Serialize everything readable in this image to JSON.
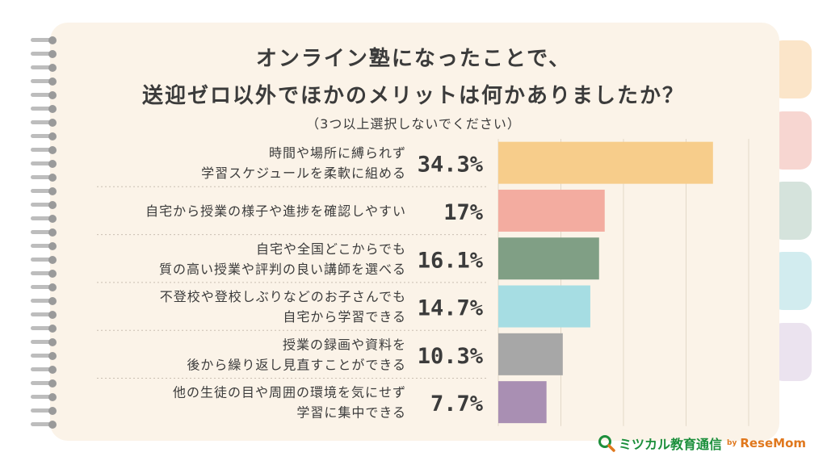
{
  "title_line1": "オンライン塾になったことで、",
  "title_line2": "送迎ゼロ以外でほかのメリットは何かありましたか？",
  "subtitle": "（3つ以上選択しないでください）",
  "logo": {
    "main": "ミツカル教育通信",
    "by": "by",
    "brand": "ReseMom"
  },
  "chart_data": {
    "type": "bar",
    "orientation": "horizontal",
    "xlim": [
      0,
      40
    ],
    "grid": true,
    "categories": [
      [
        "時間や場所に縛られず",
        "学習スケジュールを柔軟に組める"
      ],
      [
        "自宅から授業の様子や進捗を確認しやすい"
      ],
      [
        "自宅や全国どこからでも",
        "質の高い授業や評判の良い講師を選べる"
      ],
      [
        "不登校や登校しぶりなどのお子さんでも",
        "自宅から学習できる"
      ],
      [
        "授業の録画や資料を",
        "後から繰り返し見直すことができる"
      ],
      [
        "他の生徒の目や周囲の環境を気にせず",
        "学習に集中できる"
      ]
    ],
    "values": [
      34.3,
      17,
      16.1,
      14.7,
      10.3,
      7.7
    ],
    "labels": [
      "34.3%",
      "17%",
      "16.1%",
      "14.7%",
      "10.3%",
      "7.7%"
    ],
    "colors": [
      "#f7cd8b",
      "#f3aca0",
      "#809f85",
      "#a6dde3",
      "#a7a7a7",
      "#a98fb3"
    ]
  }
}
